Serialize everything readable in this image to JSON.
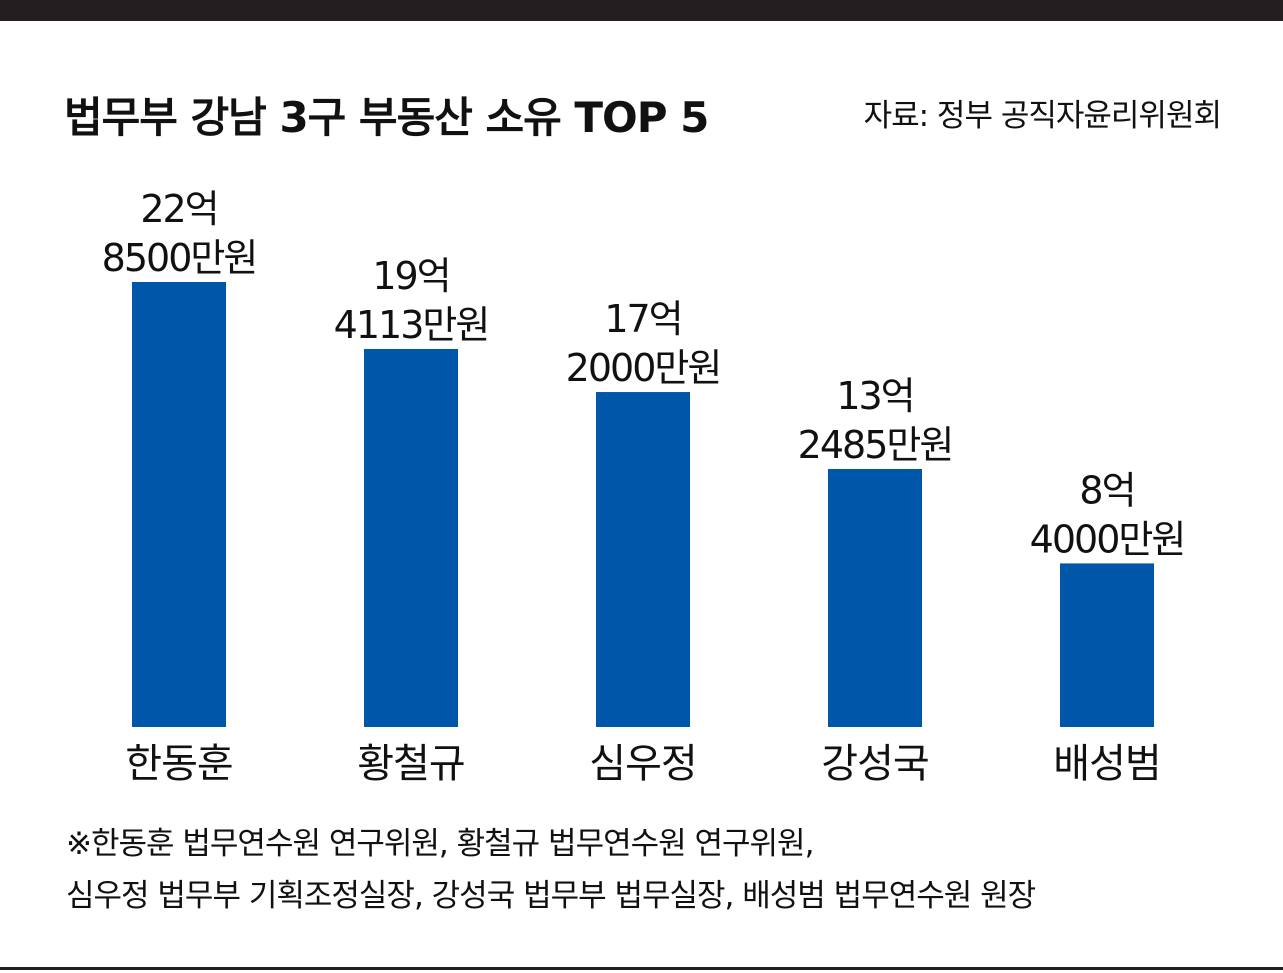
{
  "title": "법무부 강남 3구 부동산 소유 TOP 5",
  "source": "자료: 정부 공직자윤리위원회",
  "colors": {
    "bar": "#0056a8",
    "rule": "#231f20"
  },
  "chart_data": {
    "type": "bar",
    "title": "법무부 강남 3구 부동산 소유 TOP 5",
    "unit": "만원",
    "categories": [
      "한동훈",
      "황철규",
      "심우정",
      "강성국",
      "배성범"
    ],
    "values": [
      228500,
      194113,
      172000,
      132485,
      84000
    ],
    "value_labels": [
      [
        "22억",
        "8500만원"
      ],
      [
        "19억",
        "4113만원"
      ],
      [
        "17억",
        "2000만원"
      ],
      [
        "13억",
        "2485만원"
      ],
      [
        "8억",
        "4000만원"
      ]
    ],
    "ylim": [
      0,
      228500
    ],
    "grid": false,
    "legend": "none"
  },
  "notes": [
    "※한동훈 법무연수원 연구위원, 황철규 법무연수원 연구위원,",
    "심우정 법무부 기획조정실장, 강성국 법무부 법무실장, 배성범 법무연수원 원장"
  ]
}
